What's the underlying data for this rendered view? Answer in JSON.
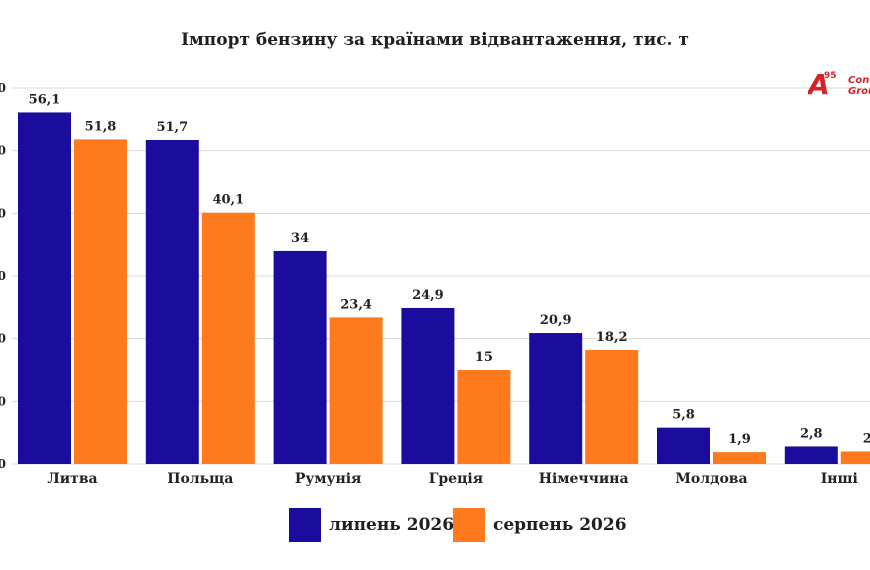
{
  "title": "Імпорт бензину за країнами відвантаження, тис. т",
  "logo": {
    "mark": "A",
    "number": "95",
    "line1": "Con",
    "line2": "Grou"
  },
  "colors": {
    "july": "#1a0d9e",
    "august": "#fe7a1d",
    "grid": "#d9d9d9"
  },
  "legend": {
    "july_label": "липень 2026",
    "august_label": "серпень 2026"
  },
  "chart_data": {
    "type": "bar",
    "title": "Імпорт бензину за країнами відвантаження, тис. т",
    "categories": [
      "Литва",
      "Польща",
      "Румунія",
      "Греція",
      "Німеччина",
      "Молдова",
      "Інші"
    ],
    "series": [
      {
        "name": "липень 2026",
        "values": [
          56.1,
          51.7,
          34,
          24.9,
          20.9,
          5.8,
          2.8
        ],
        "labels": [
          "56,1",
          "51,7",
          "34",
          "24,9",
          "20,9",
          "5,8",
          "2,8"
        ]
      },
      {
        "name": "серпень 2026",
        "values": [
          51.8,
          40.1,
          23.4,
          15,
          18.2,
          1.9,
          2
        ],
        "labels": [
          "51,8",
          "40,1",
          "23,4",
          "15",
          "18,2",
          "1,9",
          "2"
        ]
      }
    ],
    "yticks": [
      "0",
      "0",
      "0",
      "0",
      "0",
      "0",
      "0"
    ],
    "ylim": [
      0,
      60
    ],
    "grid": true,
    "legend_position": "bottom"
  }
}
